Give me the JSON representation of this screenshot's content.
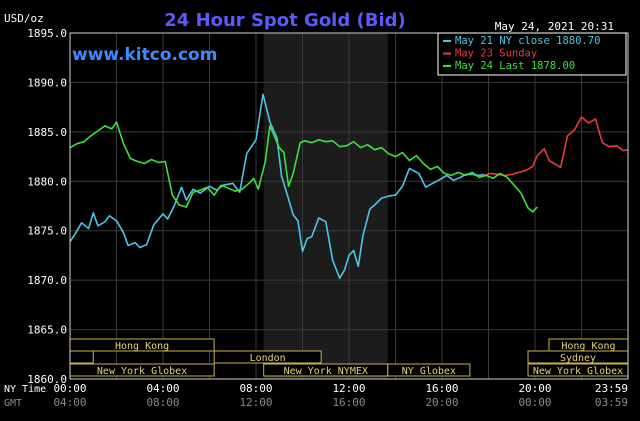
{
  "chart_data": {
    "type": "line",
    "title": "24 Hour Spot Gold (Bid)",
    "ylabel": "USD/oz",
    "brand": "www.kitco.com",
    "timestamp": "May 24, 2021 20:31",
    "ylim": [
      1860,
      1895
    ],
    "xlim": [
      0,
      24
    ],
    "y_ticks": [
      "1895.0",
      "1890.0",
      "1885.0",
      "1880.0",
      "1875.0",
      "1870.0",
      "1865.0",
      "1860.0"
    ],
    "y_tick_values": [
      1895,
      1890,
      1885,
      1880,
      1875,
      1870,
      1865,
      1860
    ],
    "x_axis_rows": [
      {
        "label": "NY Time",
        "ticks": [
          "00:00",
          "04:00",
          "08:00",
          "12:00",
          "16:00",
          "20:00",
          "23:59"
        ],
        "hours": [
          0,
          4,
          8,
          12,
          16,
          20,
          24
        ],
        "color": "#ffffff"
      },
      {
        "label": "GMT",
        "ticks": [
          "04:00",
          "08:00",
          "12:00",
          "16:00",
          "20:00",
          "00:00",
          "03:59"
        ],
        "hours": [
          0,
          4,
          8,
          12,
          16,
          20,
          24
        ],
        "color": "#8a8a8a"
      }
    ],
    "grid": true,
    "legend_position": "top-right",
    "shaded_region": {
      "from": 8.33,
      "to": 13.67
    },
    "sessions": [
      {
        "name": "Hong Kong",
        "rows": [
          {
            "start": 0,
            "end": 6.2,
            "level": 0
          },
          {
            "start": 20.6,
            "end": 24,
            "level": 0
          }
        ]
      },
      {
        "name": "London",
        "rows": [
          {
            "start": 0,
            "end": 1,
            "level": 1
          },
          {
            "start": 6.2,
            "end": 10.8,
            "level": 1
          }
        ]
      },
      {
        "name": "Sydney",
        "rows": [
          {
            "start": 19.7,
            "end": 24,
            "level": 1
          }
        ]
      },
      {
        "name": "New York Globex",
        "rows": [
          {
            "start": 0,
            "end": 6.2,
            "level": 2
          },
          {
            "start": 19.7,
            "end": 24,
            "level": 2
          }
        ]
      },
      {
        "name": "New York NYMEX",
        "rows": [
          {
            "start": 8.33,
            "end": 13.67,
            "level": 2
          }
        ]
      },
      {
        "name": "NY Globex",
        "rows": [
          {
            "start": 13.67,
            "end": 17.2,
            "level": 2
          }
        ]
      }
    ],
    "series": [
      {
        "name": "May 21 NY close 1880.70",
        "color": "#4ec5e6",
        "x": [
          0,
          0.2,
          0.5,
          0.8,
          1.0,
          1.2,
          1.5,
          1.7,
          2.0,
          2.3,
          2.5,
          2.8,
          3.0,
          3.3,
          3.6,
          4.0,
          4.2,
          4.5,
          4.8,
          5.0,
          5.3,
          5.6,
          6.0,
          6.3,
          6.6,
          7.0,
          7.3,
          7.6,
          8.0,
          8.3,
          8.6,
          8.9,
          9.1,
          9.4,
          9.6,
          9.8,
          10.0,
          10.2,
          10.4,
          10.7,
          11.0,
          11.3,
          11.6,
          11.8,
          12.0,
          12.2,
          12.4,
          12.6,
          12.9,
          13.1,
          13.4,
          13.7,
          14.0,
          14.3,
          14.6,
          15.0,
          15.3,
          15.6,
          16.0,
          16.2,
          16.5,
          16.8,
          17.0,
          17.3,
          17.6,
          17.8
        ],
        "values": [
          1873.9,
          1874.6,
          1875.8,
          1875.2,
          1876.8,
          1875.5,
          1875.9,
          1876.5,
          1876.0,
          1874.8,
          1873.5,
          1873.8,
          1873.3,
          1873.6,
          1875.6,
          1876.7,
          1876.2,
          1877.6,
          1879.4,
          1878.1,
          1879.2,
          1878.8,
          1879.5,
          1879.1,
          1879.6,
          1879.8,
          1878.9,
          1882.8,
          1884.2,
          1888.8,
          1886.0,
          1884.4,
          1880.5,
          1878.2,
          1876.6,
          1876.0,
          1872.9,
          1874.2,
          1874.4,
          1876.3,
          1875.9,
          1872.0,
          1870.2,
          1871.0,
          1872.5,
          1873.0,
          1871.4,
          1874.5,
          1877.2,
          1877.6,
          1878.3,
          1878.5,
          1878.6,
          1879.5,
          1881.3,
          1880.8,
          1879.4,
          1879.8,
          1880.3,
          1880.6,
          1880.1,
          1880.4,
          1880.7,
          1880.7,
          1880.6,
          1880.7
        ]
      },
      {
        "name": "May 23 Sunday",
        "color": "#e83a3a",
        "x": [
          17.8,
          18.1,
          18.4,
          18.7,
          19.0,
          19.3,
          19.6,
          19.9,
          20.1,
          20.4,
          20.6,
          20.9,
          21.1,
          21.4,
          21.7,
          22.0,
          22.3,
          22.6,
          22.9,
          23.2,
          23.5,
          23.8,
          24.0
        ],
        "values": [
          1880.6,
          1880.8,
          1880.7,
          1880.6,
          1880.7,
          1880.9,
          1881.1,
          1881.5,
          1882.6,
          1883.3,
          1882.1,
          1881.7,
          1881.4,
          1884.6,
          1885.2,
          1886.5,
          1885.9,
          1886.3,
          1883.9,
          1883.5,
          1883.6,
          1883.1,
          1883.2
        ]
      },
      {
        "name": "May 24 Last 1878.00",
        "color": "#3ee03e",
        "x": [
          0,
          0.3,
          0.6,
          0.9,
          1.2,
          1.5,
          1.8,
          2.0,
          2.3,
          2.6,
          2.9,
          3.2,
          3.5,
          3.8,
          4.1,
          4.4,
          4.7,
          5.0,
          5.3,
          5.6,
          5.9,
          6.2,
          6.5,
          6.8,
          7.1,
          7.4,
          7.7,
          7.9,
          8.1,
          8.4,
          8.6,
          8.8,
          9.0,
          9.2,
          9.4,
          9.6,
          9.9,
          10.1,
          10.4,
          10.7,
          11.0,
          11.3,
          11.6,
          11.9,
          12.2,
          12.5,
          12.8,
          13.1,
          13.4,
          13.7,
          14.0,
          14.3,
          14.6,
          14.9,
          15.2,
          15.5,
          15.8,
          16.1,
          16.4,
          16.7,
          17.0,
          17.3,
          17.6,
          17.9,
          18.2,
          18.5,
          18.8,
          19.1,
          19.4,
          19.7,
          19.9,
          20.1
        ],
        "values": [
          1883.4,
          1883.8,
          1884.0,
          1884.6,
          1885.1,
          1885.6,
          1885.3,
          1886.0,
          1883.8,
          1882.3,
          1882.0,
          1881.8,
          1882.2,
          1881.9,
          1882.0,
          1878.6,
          1877.6,
          1877.4,
          1878.9,
          1879.1,
          1879.4,
          1878.6,
          1879.6,
          1879.3,
          1879.0,
          1879.2,
          1879.8,
          1880.3,
          1879.2,
          1882.0,
          1885.6,
          1884.5,
          1883.4,
          1882.9,
          1879.5,
          1880.8,
          1883.9,
          1884.1,
          1883.9,
          1884.2,
          1884.0,
          1884.1,
          1883.5,
          1883.6,
          1884.0,
          1883.4,
          1883.7,
          1883.2,
          1883.4,
          1882.8,
          1882.5,
          1882.9,
          1882.1,
          1882.6,
          1881.8,
          1881.2,
          1881.5,
          1880.8,
          1880.6,
          1880.9,
          1880.6,
          1880.9,
          1880.4,
          1880.6,
          1880.3,
          1880.8,
          1880.4,
          1879.6,
          1878.8,
          1877.3,
          1876.9,
          1877.4
        ]
      }
    ]
  }
}
